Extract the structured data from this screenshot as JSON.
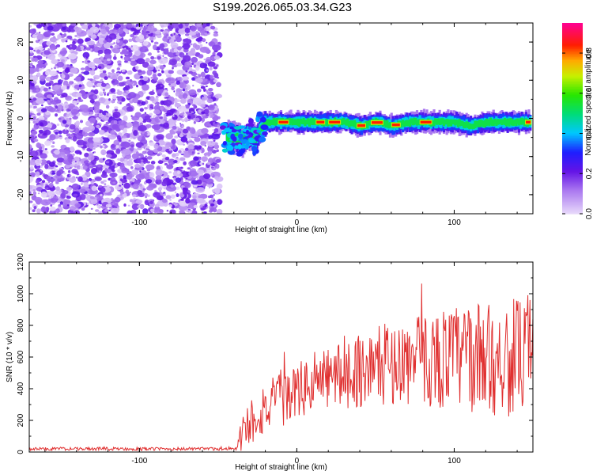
{
  "title": "S199.2026.065.03.34.G23",
  "chart_data": [
    {
      "type": "heatmap",
      "xlabel": "Height of straight line (km)",
      "ylabel": "Frequency (Hz)",
      "xlim": [
        -170,
        150
      ],
      "ylim": [
        -25,
        25
      ],
      "xticks": [
        -100,
        0,
        100
      ],
      "yticks": [
        -20,
        -10,
        0,
        10,
        20
      ],
      "colorbar": {
        "label": "Normalized spectral amplitude",
        "range": [
          0,
          0.95
        ],
        "ticks": [
          0.0,
          0.2,
          0.4,
          0.6,
          0.8
        ]
      },
      "noise_region_x": [
        -170,
        -47
      ],
      "signal_ridge": [
        {
          "x": -45,
          "y": -5
        },
        {
          "x": -40,
          "y": -5
        },
        {
          "x": -35,
          "y": -6
        },
        {
          "x": -30,
          "y": -4
        },
        {
          "x": -27,
          "y": -6
        },
        {
          "x": -24,
          "y": -3
        },
        {
          "x": -20,
          "y": -1
        },
        {
          "x": -15,
          "y": -1
        },
        {
          "x": -10,
          "y": -1
        },
        {
          "x": -5,
          "y": -1
        },
        {
          "x": 0,
          "y": -1
        },
        {
          "x": 10,
          "y": -1
        },
        {
          "x": 20,
          "y": -1
        },
        {
          "x": 30,
          "y": -1
        },
        {
          "x": 40,
          "y": -2
        },
        {
          "x": 50,
          "y": -1
        },
        {
          "x": 60,
          "y": -2
        },
        {
          "x": 70,
          "y": -1
        },
        {
          "x": 80,
          "y": -1
        },
        {
          "x": 90,
          "y": -1
        },
        {
          "x": 100,
          "y": -1
        },
        {
          "x": 110,
          "y": -2
        },
        {
          "x": 120,
          "y": -1
        },
        {
          "x": 130,
          "y": -1
        },
        {
          "x": 140,
          "y": -1
        },
        {
          "x": 148,
          "y": -1
        }
      ],
      "ridge_peak_segments": [
        [
          -12,
          -5
        ],
        [
          12,
          18
        ],
        [
          20,
          28
        ],
        [
          38,
          44
        ],
        [
          47,
          55
        ],
        [
          60,
          66
        ],
        [
          78,
          86
        ],
        [
          145,
          149
        ]
      ]
    },
    {
      "type": "line",
      "xlabel": "Height of straight line (km)",
      "ylabel": "SNR (10 * v/v)",
      "xlim": [
        -170,
        150
      ],
      "ylim": [
        0,
        1200
      ],
      "xticks": [
        -100,
        0,
        100
      ],
      "yticks": [
        0,
        200,
        400,
        600,
        800,
        1000,
        1200
      ],
      "series": [
        {
          "name": "SNR",
          "color": "#e03030",
          "envelope": [
            {
              "x": -170,
              "mean": 20,
              "amp": 10
            },
            {
              "x": -50,
              "mean": 20,
              "amp": 10
            },
            {
              "x": -38,
              "mean": 20,
              "amp": 12
            },
            {
              "x": -35,
              "mean": 120,
              "amp": 120
            },
            {
              "x": -25,
              "mean": 250,
              "amp": 180
            },
            {
              "x": -10,
              "mean": 330,
              "amp": 170
            },
            {
              "x": 0,
              "mean": 380,
              "amp": 180
            },
            {
              "x": 20,
              "mean": 470,
              "amp": 200
            },
            {
              "x": 40,
              "mean": 520,
              "amp": 240
            },
            {
              "x": 60,
              "mean": 560,
              "amp": 260
            },
            {
              "x": 80,
              "mean": 580,
              "amp": 300
            },
            {
              "x": 100,
              "mean": 600,
              "amp": 330
            },
            {
              "x": 120,
              "mean": 590,
              "amp": 360
            },
            {
              "x": 140,
              "mean": 600,
              "amp": 380
            },
            {
              "x": 150,
              "mean": 600,
              "amp": 300
            }
          ]
        }
      ]
    }
  ]
}
